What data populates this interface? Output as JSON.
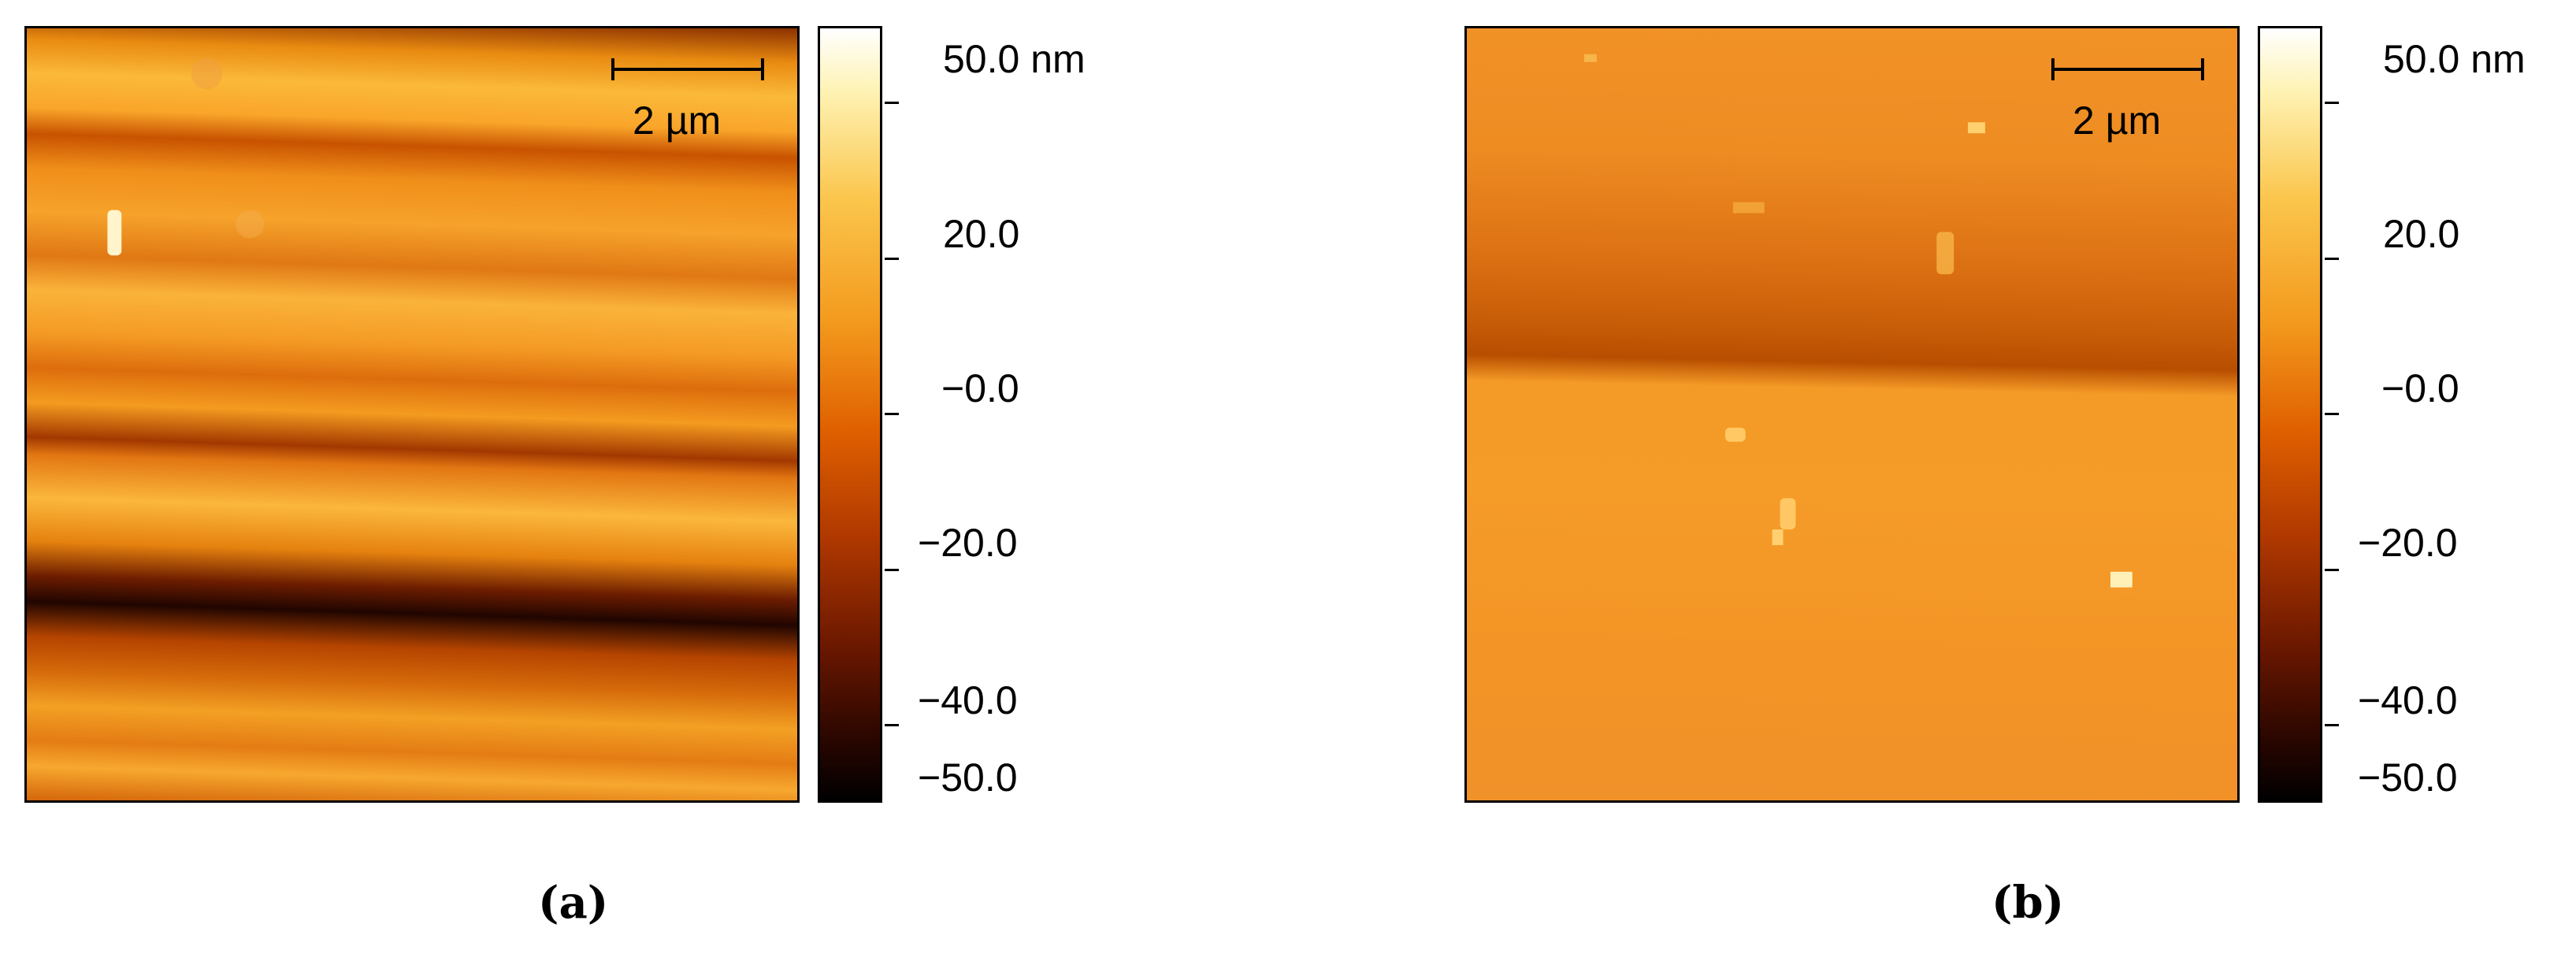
{
  "panels": [
    {
      "label": "(a)",
      "scale_bar": "2 µm",
      "colorbar": {
        "top_label": "50.0 nm",
        "ticks": [
          "20.0",
          "−0.0",
          "−20.0",
          "−40.0",
          "−50.0"
        ]
      },
      "colormap": {
        "low": "#000000",
        "mid": "#e06000",
        "high": "#ffffff"
      }
    },
    {
      "label": "(b)",
      "scale_bar": "2 µm",
      "colorbar": {
        "top_label": "50.0 nm",
        "ticks": [
          "20.0",
          "−0.0",
          "−20.0",
          "−40.0",
          "−50.0"
        ]
      },
      "colormap": {
        "low": "#000000",
        "mid": "#e06000",
        "high": "#ffffff"
      }
    }
  ]
}
